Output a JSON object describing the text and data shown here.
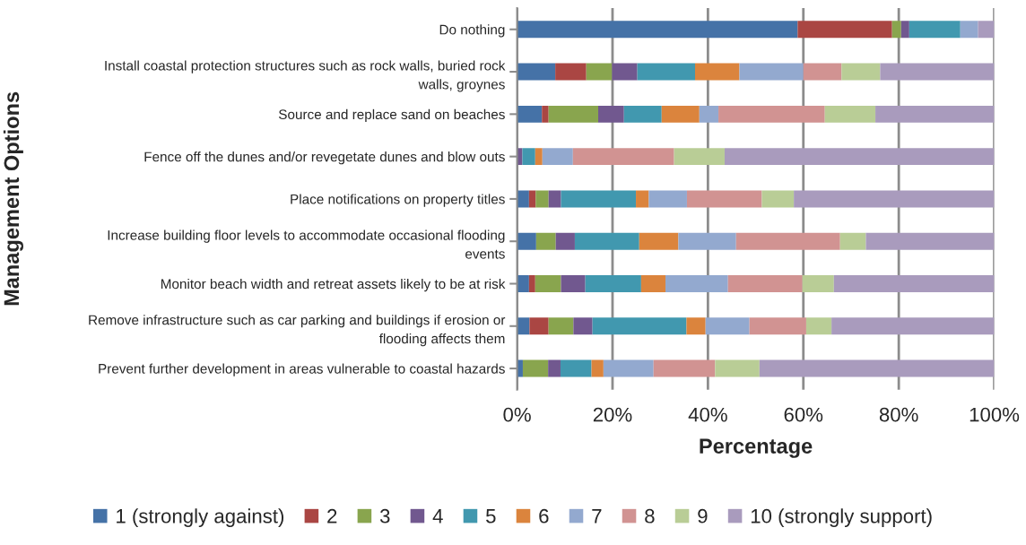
{
  "chart_data": {
    "type": "bar",
    "orientation": "horizontal",
    "stacked": true,
    "xlabel": "Percentage",
    "ylabel": "Management Options",
    "categories": [
      "Do nothing",
      "Install coastal protection structures such as rock walls, buried rock\nwalls, groynes",
      "Source and replace sand on beaches",
      "Fence off the dunes and/or revegetate dunes and blow outs",
      "Place notifications on property titles",
      "Increase building floor levels to accommodate occasional flooding\nevents",
      "Monitor beach width and retreat assets likely to be at risk",
      "Remove infrastructure such as car parking and buildings if erosion or\nflooding affects them",
      "Prevent further development in areas vulnerable to coastal hazards"
    ],
    "series": [
      {
        "name": "1 (strongly against)",
        "color": "#4572a7",
        "values": [
          58.8,
          8.0,
          5.2,
          0,
          2.5,
          4.0,
          2.5,
          2.6,
          1.2
        ]
      },
      {
        "name": "2",
        "color": "#aa4643",
        "values": [
          19.8,
          6.5,
          1.4,
          0,
          1.4,
          0,
          1.3,
          4.0,
          0
        ]
      },
      {
        "name": "3",
        "color": "#89a54e",
        "values": [
          1.9,
          5.4,
          10.4,
          0,
          2.7,
          4.1,
          5.4,
          5.2,
          5.3
        ]
      },
      {
        "name": "4",
        "color": "#71588f",
        "values": [
          1.7,
          5.3,
          5.4,
          1.1,
          2.6,
          4.0,
          5.1,
          4.0,
          2.6
        ]
      },
      {
        "name": "5",
        "color": "#4198af",
        "values": [
          10.7,
          12.1,
          7.9,
          2.7,
          15.7,
          13.5,
          11.7,
          19.7,
          6.5
        ]
      },
      {
        "name": "6",
        "color": "#db843d",
        "values": [
          0,
          9.3,
          7.9,
          1.5,
          2.7,
          8.2,
          5.1,
          4.0,
          2.5
        ]
      },
      {
        "name": "7",
        "color": "#93a9cf",
        "values": [
          3.7,
          13.4,
          4.0,
          6.4,
          8.0,
          12.1,
          13.1,
          9.2,
          10.5
        ]
      },
      {
        "name": "8",
        "color": "#d19392",
        "values": [
          0,
          8.0,
          22.3,
          21.2,
          15.7,
          21.8,
          15.6,
          11.9,
          12.9
        ]
      },
      {
        "name": "9",
        "color": "#b9cd96",
        "values": [
          0,
          8.1,
          10.6,
          10.6,
          6.7,
          5.4,
          6.6,
          5.3,
          9.3
        ]
      },
      {
        "name": "10 (strongly support)",
        "color": "#a99bbd",
        "values": [
          3.4,
          23.9,
          24.9,
          56.5,
          42.0,
          26.9,
          33.6,
          34.1,
          49.2
        ]
      }
    ],
    "xlim": [
      0,
      100
    ],
    "xticks": [
      {
        "value": 0,
        "label": "0%"
      },
      {
        "value": 20,
        "label": "20%"
      },
      {
        "value": 40,
        "label": "40%"
      },
      {
        "value": 60,
        "label": "60%"
      },
      {
        "value": 80,
        "label": "80%"
      },
      {
        "value": 100,
        "label": "100%"
      }
    ],
    "grid": "x",
    "legend": "bottom"
  }
}
